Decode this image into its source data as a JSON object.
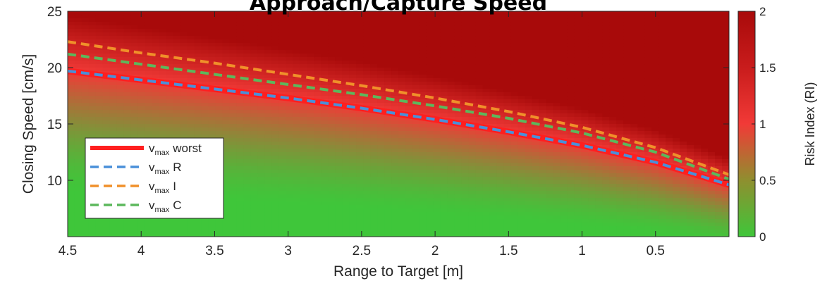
{
  "chart_data": {
    "type": "heatmap",
    "title": "Approach/Capture Speed",
    "xlabel": "Range to Target [m]",
    "ylabel": "Closing Speed [cm/s]",
    "colorbar_label": "Risk Index (RI)",
    "xlim": [
      4.5,
      0
    ],
    "ylim": [
      5,
      25
    ],
    "x_reversed": true,
    "x_ticks": [
      4.5,
      4,
      3.5,
      3,
      2.5,
      2,
      1.5,
      1,
      0.5
    ],
    "x_tick_labels": [
      "4.5",
      "4",
      "3.5",
      "3",
      "2.5",
      "2",
      "1.5",
      "1",
      "0.5"
    ],
    "y_ticks": [
      10,
      15,
      20,
      25
    ],
    "y_tick_labels": [
      "10",
      "15",
      "20",
      "25"
    ],
    "colorbar_range": [
      0,
      2
    ],
    "colorbar_ticks": [
      0,
      0.5,
      1,
      1.5,
      2
    ],
    "colorbar_tick_labels": [
      "0",
      "0.5",
      "1",
      "1.5",
      "2"
    ],
    "colors": {
      "low": "#3fc63a",
      "mid": "#f13a37",
      "high": "#a80a0a"
    },
    "legend_placement": "lower-left",
    "series": [
      {
        "name_main": "v",
        "name_sub": "max",
        "name_tail": "worst",
        "style": "solid",
        "color": "#ff1f1f",
        "x": [
          4.5,
          4,
          3.5,
          3,
          2.5,
          2,
          1.5,
          1,
          0.5,
          0
        ],
        "y": [
          19.7,
          18.9,
          18.1,
          17.3,
          16.4,
          15.4,
          14.3,
          13.1,
          11.6,
          9.6
        ]
      },
      {
        "name_main": "v",
        "name_sub": "max",
        "name_tail": "R",
        "style": "dashed",
        "color": "#4a90d9",
        "x": [
          4.5,
          4,
          3.5,
          3,
          2.5,
          2,
          1.5,
          1,
          0.5,
          0
        ],
        "y": [
          19.7,
          18.9,
          18.1,
          17.3,
          16.4,
          15.4,
          14.3,
          13.1,
          11.6,
          9.6
        ]
      },
      {
        "name_main": "v",
        "name_sub": "max",
        "name_tail": "I",
        "style": "dashed",
        "color": "#f0902a",
        "x": [
          4.5,
          4,
          3.5,
          3,
          2.5,
          2,
          1.5,
          1,
          0.5,
          0
        ],
        "y": [
          22.3,
          21.3,
          20.4,
          19.4,
          18.4,
          17.3,
          16.1,
          14.7,
          12.9,
          10.5
        ]
      },
      {
        "name_main": "v",
        "name_sub": "max",
        "name_tail": "C",
        "style": "dashed",
        "color": "#5cb85c",
        "x": [
          4.5,
          4,
          3.5,
          3,
          2.5,
          2,
          1.5,
          1,
          0.5,
          0
        ],
        "y": [
          21.2,
          20.3,
          19.4,
          18.5,
          17.6,
          16.6,
          15.5,
          14.2,
          12.5,
          10.1
        ]
      }
    ]
  }
}
